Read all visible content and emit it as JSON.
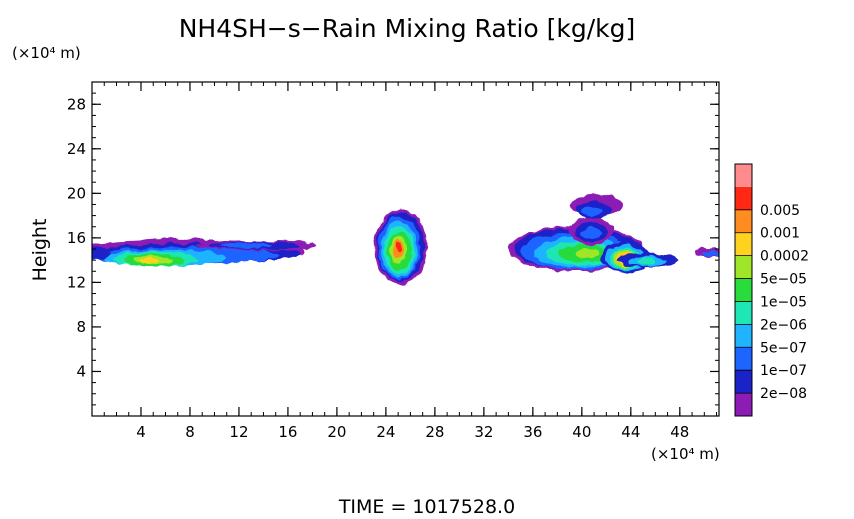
{
  "chart_data": {
    "type": "heatmap",
    "title": "NH4SH−s−Rain Mixing Ratio [kg/kg]",
    "ylabel": "Height",
    "x_unit": "(×10⁴ m)",
    "y_unit": "(×10⁴ m)",
    "xlim": [
      0,
      51.2
    ],
    "ylim": [
      0,
      30
    ],
    "x_ticks": [
      "4",
      "8",
      "12",
      "16",
      "20",
      "24",
      "28",
      "32",
      "36",
      "40",
      "44",
      "48"
    ],
    "y_ticks": [
      "4",
      "8",
      "12",
      "16",
      "20",
      "24",
      "28"
    ],
    "footer": "TIME  =  1017528.0",
    "colorbar": {
      "levels": [
        "2e−08",
        "1e−07",
        "5e−07",
        "2e−06",
        "1e−05",
        "5e−05",
        "0.0002",
        "0.001",
        "0.005"
      ],
      "colors": [
        "#8c1cb4",
        "#1a22c8",
        "#1e64ff",
        "#1eb4ff",
        "#1ee6b4",
        "#28dc3c",
        "#a0e628",
        "#ffd21e",
        "#ff8c1e",
        "#ff2814",
        "#ff8c8c"
      ]
    },
    "features": [
      {
        "x": [
          0,
          16.5
        ],
        "y": [
          13,
          16
        ],
        "peak_level": "5e−05"
      },
      {
        "x": [
          23.5,
          27
        ],
        "y": [
          12.8,
          17.5
        ],
        "peak_level": "0.001"
      },
      {
        "x": [
          35.5,
          42.5
        ],
        "y": [
          13,
          20
        ],
        "peak_level": "5e−05"
      },
      {
        "x": [
          42.5,
          47
        ],
        "y": [
          13,
          15.5
        ],
        "peak_level": "0.001"
      },
      {
        "x": [
          49.5,
          51.2
        ],
        "y": [
          14,
          15.5
        ],
        "peak_level": "5e−07"
      }
    ]
  }
}
